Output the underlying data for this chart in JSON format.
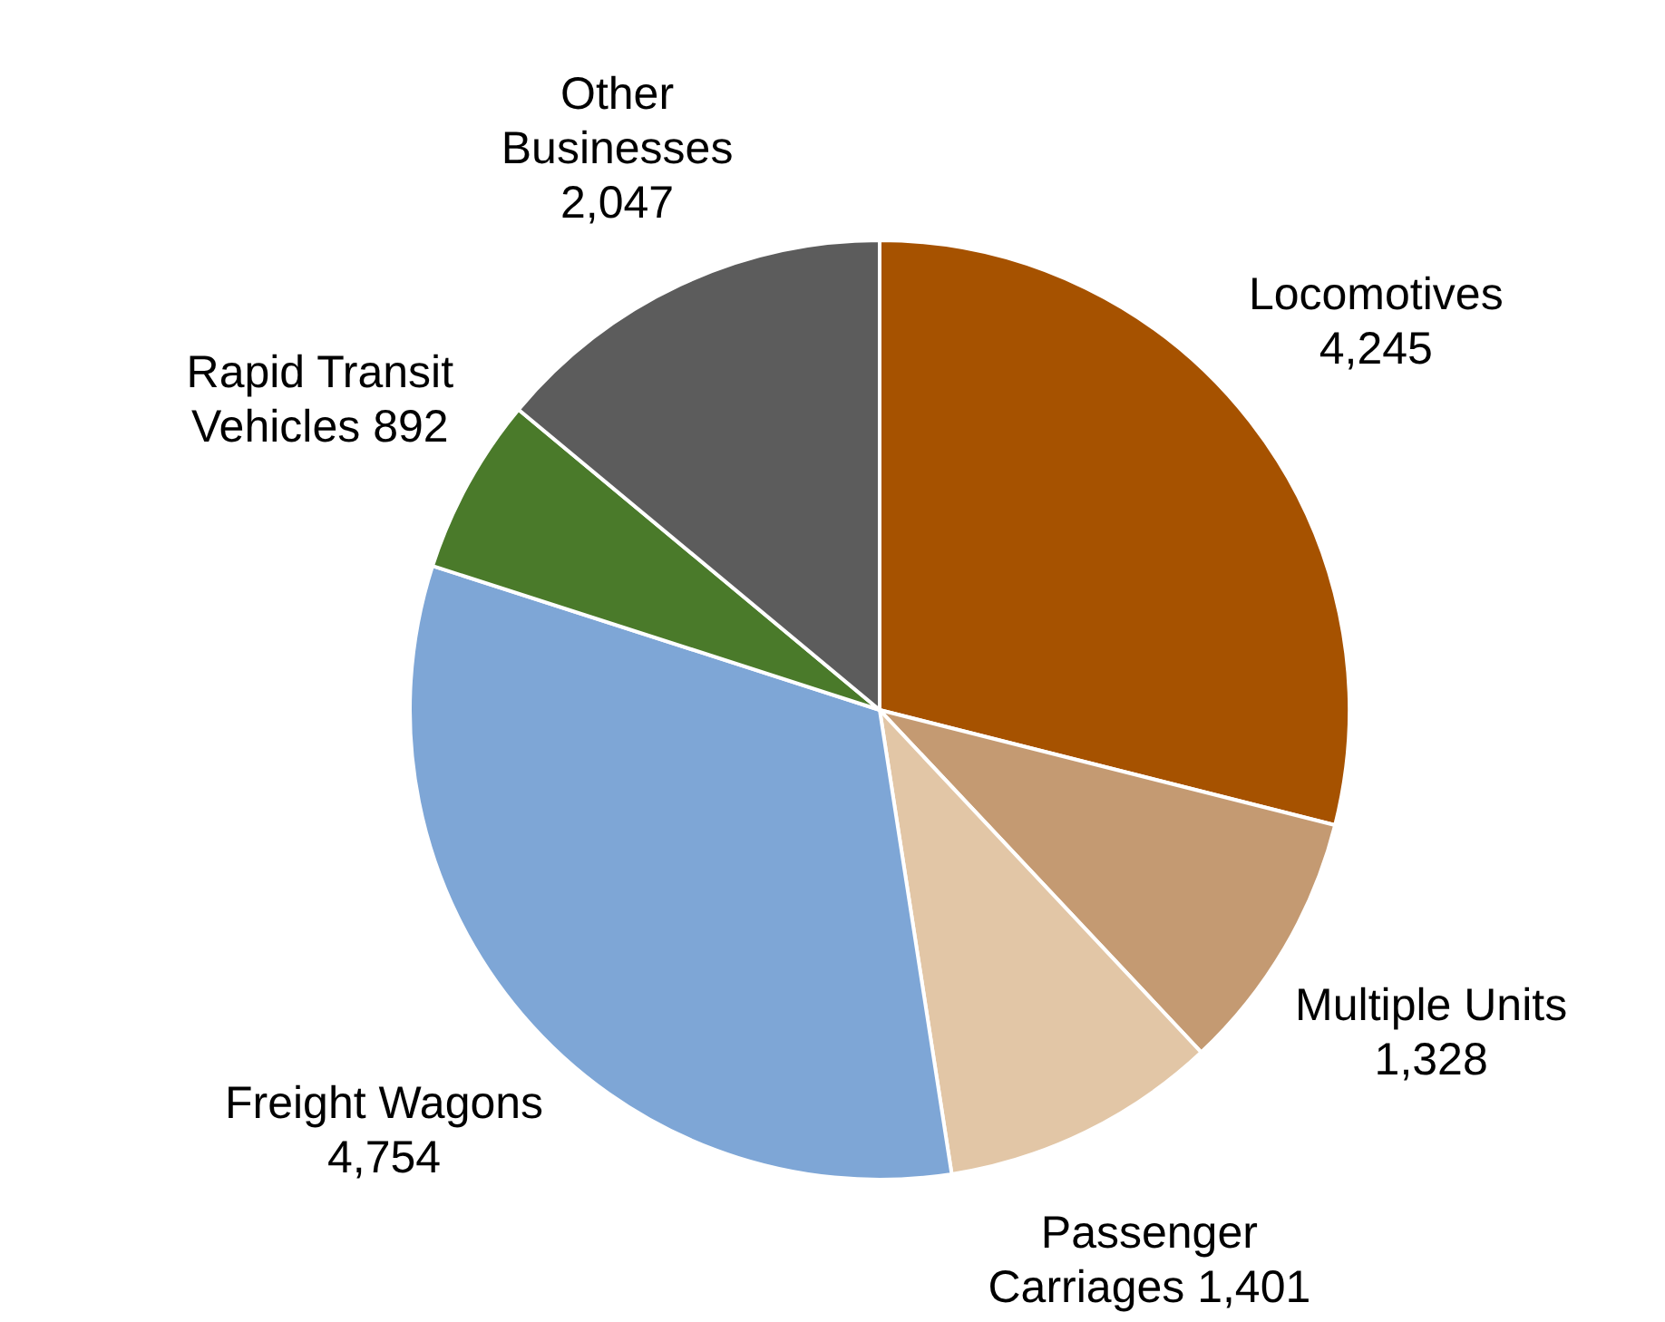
{
  "chart_data": {
    "type": "pie",
    "categories": [
      "Locomotives",
      "Multiple Units",
      "Passenger Carriages",
      "Freight Wagons",
      "Rapid Transit Vehicles",
      "Other Businesses"
    ],
    "values": [
      4245,
      1328,
      1401,
      4754,
      892,
      2047
    ],
    "value_labels": [
      "4,245",
      "1,328",
      "1,401",
      "4,754",
      "892",
      "2,047"
    ],
    "colors": [
      "#a65200",
      "#c49a72",
      "#e2c6a6",
      "#7ea6d6",
      "#4a7a2a",
      "#5c5c5c"
    ],
    "legend": false
  }
}
